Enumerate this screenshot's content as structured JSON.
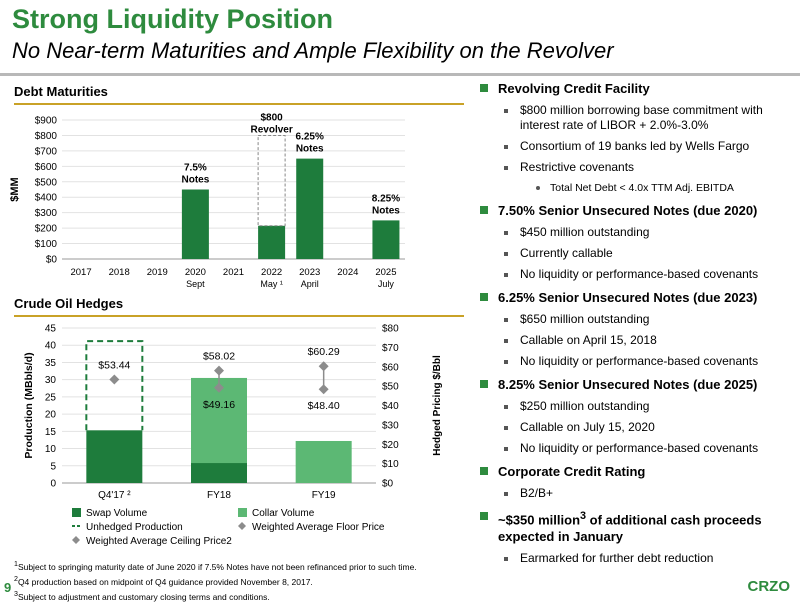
{
  "header": {
    "title": "Strong Liquidity Position",
    "subtitle": "No Near-term Maturities and Ample Flexibility on the Revolver"
  },
  "debt_section_title": "Debt Maturities",
  "hedges_section_title": "Crude Oil Hedges",
  "colors": {
    "accent": "#2e8b3e",
    "dark_green": "#1e7c3c",
    "light_green": "#5cb874",
    "gold_rule": "#c9a227",
    "marker_gray": "#8c8c8c"
  },
  "chart_data": [
    {
      "type": "bar",
      "ylabel": "$MM",
      "ylim": [
        0,
        900
      ],
      "yticks": [
        "$0",
        "$100",
        "$200",
        "$300",
        "$400",
        "$500",
        "$600",
        "$700",
        "$800",
        "$900"
      ],
      "categories": [
        "2017",
        "2018",
        "2019",
        "2020",
        "2021",
        "2022",
        "2023",
        "2024",
        "2025"
      ],
      "sublabels": [
        "",
        "",
        "",
        "Sept",
        "",
        "May ¹",
        "April",
        "",
        "July"
      ],
      "values": [
        0,
        0,
        0,
        450,
        0,
        215,
        650,
        0,
        250
      ],
      "revolver": {
        "category": "2022",
        "value": 800,
        "label_line1": "$800",
        "label_line2": "Revolver"
      },
      "annotations": [
        {
          "category": "2020",
          "line1": "7.5%",
          "line2": "Notes"
        },
        {
          "category": "2023",
          "line1": "6.25%",
          "line2": "Notes"
        },
        {
          "category": "2025",
          "line1": "8.25%",
          "line2": "Notes"
        }
      ]
    },
    {
      "type": "bar",
      "ylabel": "Production (MBbls/d)",
      "y2label": "Hedged Pricing $/Bbl",
      "ylim": [
        0,
        45
      ],
      "y2lim": [
        0,
        80
      ],
      "yticks": [
        "0",
        "5",
        "10",
        "15",
        "20",
        "25",
        "30",
        "35",
        "40",
        "45"
      ],
      "y2ticks": [
        "$0",
        "$10",
        "$20",
        "$30",
        "$40",
        "$50",
        "$60",
        "$70",
        "$80"
      ],
      "categories": [
        "Q4'17 ²",
        "FY18",
        "FY19"
      ],
      "series": [
        {
          "name": "Swap Volume",
          "values": [
            15.3,
            5.8,
            0
          ]
        },
        {
          "name": "Collar Volume",
          "values": [
            0,
            24.7,
            12.2
          ]
        },
        {
          "name": "Unhedged Production",
          "values": [
            25.9,
            0,
            0
          ]
        }
      ],
      "floor_price": [
        null,
        49.16,
        48.4
      ],
      "ceiling_price": [
        53.44,
        58.02,
        60.29
      ],
      "price_labels": [
        {
          "category": "Q4'17 ²",
          "text": "$53.44",
          "pos": "above"
        },
        {
          "category": "FY18",
          "text": "$58.02",
          "pos": "above"
        },
        {
          "category": "FY18",
          "text": "$49.16",
          "pos": "below"
        },
        {
          "category": "FY19",
          "text": "$60.29",
          "pos": "above"
        },
        {
          "category": "FY19",
          "text": "$48.40",
          "pos": "below"
        }
      ],
      "legend": [
        {
          "name": "Swap Volume",
          "kind": "swatch",
          "color": "#1e7c3c"
        },
        {
          "name": "Collar Volume",
          "kind": "swatch",
          "color": "#5cb874"
        },
        {
          "name": "Unhedged Production",
          "kind": "dashed",
          "color": "#1e7c3c"
        },
        {
          "name": "Weighted Average Floor Price",
          "kind": "diamond",
          "color": "#8c8c8c"
        },
        {
          "name": "Weighted Average Ceiling Price2",
          "kind": "diamond",
          "color": "#8c8c8c"
        }
      ]
    }
  ],
  "right_panel": [
    {
      "heading": "Revolving Credit Facility",
      "items": [
        {
          "text": "$800 million borrowing base commitment with interest rate of LIBOR + 2.0%-3.0%"
        },
        {
          "text": "Consortium of 19 banks led by Wells Fargo"
        },
        {
          "text": "Restrictive covenants",
          "sub": [
            "Total Net Debt < 4.0x TTM Adj. EBITDA"
          ]
        }
      ]
    },
    {
      "heading": "7.50% Senior Unsecured Notes (due 2020)",
      "items": [
        {
          "text": "$450 million outstanding"
        },
        {
          "text": "Currently callable"
        },
        {
          "text": "No liquidity or performance-based covenants"
        }
      ]
    },
    {
      "heading": "6.25% Senior Unsecured Notes (due 2023)",
      "items": [
        {
          "text": "$650 million outstanding"
        },
        {
          "text": "Callable on April 15, 2018"
        },
        {
          "text": "No liquidity or performance-based covenants"
        }
      ]
    },
    {
      "heading": "8.25% Senior Unsecured Notes (due 2025)",
      "items": [
        {
          "text": "$250 million outstanding"
        },
        {
          "text": "Callable on July 15, 2020"
        },
        {
          "text": "No liquidity or performance-based covenants"
        }
      ]
    },
    {
      "heading": "Corporate Credit Rating",
      "items": [
        {
          "text": "B2/B+"
        }
      ]
    },
    {
      "heading_pre": "~$350 million",
      "heading_sup": "3",
      "heading_post": " of additional cash proceeds expected in January",
      "items": [
        {
          "text": "Earmarked for further debt reduction"
        }
      ]
    }
  ],
  "footnotes": [
    {
      "sup": "1",
      "text": "Subject to springing maturity date of June 2020 if 7.5% Notes have not been refinanced prior to such time."
    },
    {
      "sup": "2",
      "text": "Q4 production based on midpoint of Q4 guidance provided November 8, 2017."
    },
    {
      "sup": "3",
      "text": "Subject to adjustment and customary closing terms and conditions."
    }
  ],
  "page_number": "9",
  "logo": "CRZO"
}
